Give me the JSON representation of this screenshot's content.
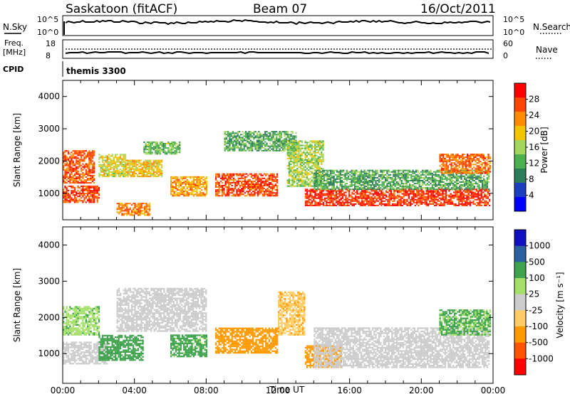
{
  "header": {
    "title": "Saskatoon (fitACF)",
    "beam": "Beam 07",
    "date": "16/Oct/2011"
  },
  "noise_panel": {
    "left_label": "N.Sky",
    "right_label": "N.Search",
    "left_ticks": [
      "10^5",
      "10^0"
    ],
    "right_ticks": [
      "10^5",
      "10^0"
    ]
  },
  "freq_panel": {
    "left_label_1": "Freq.",
    "left_label_2": "[MHz]",
    "right_label": "Nave",
    "left_ticks": [
      "18",
      "8"
    ],
    "right_ticks": [
      "60",
      "0"
    ]
  },
  "cpid_panel": {
    "label": "CPID",
    "value": "themis 3300"
  },
  "colors": {
    "power": [
      "#0000ff",
      "#1c3fbf",
      "#2e7d5a",
      "#4caf50",
      "#a3d65c",
      "#f2c500",
      "#ff8c00",
      "#ff4500",
      "#ff0000"
    ],
    "velocity": [
      "#ff0000",
      "#ff5500",
      "#ff9900",
      "#ffcc66",
      "#cccccc",
      "#a6e06b",
      "#3fa34d",
      "#2a5fa0",
      "#1010c0"
    ]
  },
  "chart_data": [
    {
      "type": "heatmap",
      "name": "power",
      "ylabel": "Slant Range [km]",
      "ylim": [
        180,
        4500
      ],
      "yticks": [
        "1000",
        "2000",
        "3000",
        "4000"
      ],
      "xlim_hours": [
        0,
        24
      ],
      "colorbar_label": "Power [dB]",
      "colorbar_ticks": [
        "4",
        "8",
        "12",
        "16",
        "20",
        "24",
        "28"
      ],
      "regions": [
        {
          "t": [
            0.0,
            1.8
          ],
          "r": [
            1300,
            2300
          ],
          "v": 26
        },
        {
          "t": [
            0.0,
            2.0
          ],
          "r": [
            700,
            1200
          ],
          "v": 27
        },
        {
          "t": [
            2.0,
            3.5
          ],
          "r": [
            1500,
            2200
          ],
          "v": 18
        },
        {
          "t": [
            3.0,
            4.8
          ],
          "r": [
            300,
            700
          ],
          "v": 24
        },
        {
          "t": [
            3.5,
            5.5
          ],
          "r": [
            1500,
            2000
          ],
          "v": 20
        },
        {
          "t": [
            4.5,
            6.5
          ],
          "r": [
            2200,
            2600
          ],
          "v": 14
        },
        {
          "t": [
            6.0,
            8.0
          ],
          "r": [
            900,
            1500
          ],
          "v": 22
        },
        {
          "t": [
            8.5,
            12.0
          ],
          "r": [
            900,
            1600
          ],
          "v": 27
        },
        {
          "t": [
            9.0,
            13.0
          ],
          "r": [
            2300,
            2900
          ],
          "v": 12
        },
        {
          "t": [
            12.5,
            14.5
          ],
          "r": [
            1200,
            2600
          ],
          "v": 16
        },
        {
          "t": [
            13.5,
            23.8
          ],
          "r": [
            600,
            1100
          ],
          "v": 28
        },
        {
          "t": [
            14.0,
            23.8
          ],
          "r": [
            1100,
            1700
          ],
          "v": 12
        },
        {
          "t": [
            21.0,
            23.8
          ],
          "r": [
            1600,
            2200
          ],
          "v": 25
        }
      ]
    },
    {
      "type": "heatmap",
      "name": "velocity",
      "ylabel": "Slant Range [km]",
      "ylim": [
        180,
        4500
      ],
      "yticks": [
        "1000",
        "2000",
        "3000",
        "4000"
      ],
      "xlim_hours": [
        0,
        24
      ],
      "xlabel": "Time UT",
      "xticks": [
        "00:00",
        "04:00",
        "08:00",
        "12:00",
        "16:00",
        "20:00",
        "00:00"
      ],
      "colorbar_label": "Velocity [m s⁻¹]",
      "colorbar_ticks": [
        "1000",
        "500",
        "100",
        "25",
        "-25",
        "-100",
        "-500",
        "-1000"
      ],
      "regions": [
        {
          "t": [
            0.0,
            2.5
          ],
          "r": [
            700,
            1300
          ],
          "v": 0
        },
        {
          "t": [
            0.0,
            2.0
          ],
          "r": [
            1500,
            2300
          ],
          "v": 80
        },
        {
          "t": [
            2.0,
            4.5
          ],
          "r": [
            800,
            1500
          ],
          "v": 200
        },
        {
          "t": [
            3.0,
            8.0
          ],
          "r": [
            1600,
            2800
          ],
          "v": 0
        },
        {
          "t": [
            6.0,
            8.0
          ],
          "r": [
            900,
            1500
          ],
          "v": 150
        },
        {
          "t": [
            8.5,
            12.0
          ],
          "r": [
            1000,
            1700
          ],
          "v": -200
        },
        {
          "t": [
            12.0,
            13.5
          ],
          "r": [
            1500,
            2700
          ],
          "v": -80
        },
        {
          "t": [
            13.5,
            15.5
          ],
          "r": [
            600,
            1200
          ],
          "v": -300
        },
        {
          "t": [
            14.0,
            23.8
          ],
          "r": [
            600,
            1700
          ],
          "v": 0
        },
        {
          "t": [
            21.0,
            23.8
          ],
          "r": [
            1500,
            2200
          ],
          "v": 120
        }
      ]
    }
  ]
}
